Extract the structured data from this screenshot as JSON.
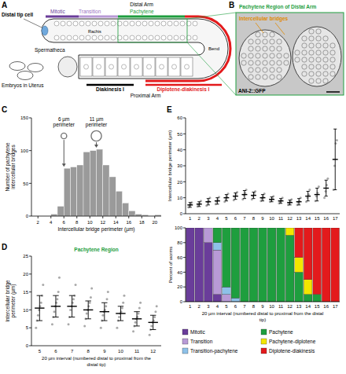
{
  "diagram": {
    "panel_label": "A",
    "labels": {
      "distal_arm": "Distal Arm",
      "mitotic": "Mitotic",
      "transition": "Transition",
      "pachytene": "Pachytene",
      "distal_tip_cell": "Distal tip cell",
      "rachis": "Rachis",
      "bend": "Bend",
      "spermatheca": "Spermatheca",
      "embryos": "Embryos in Uterus",
      "diakinesis": "Diakinesis I",
      "diplotene": "Diplotene-diakinesis I",
      "proximal_arm": "Proximal Arm"
    }
  },
  "image": {
    "panel_label": "B",
    "title": "Pachytene Region of Distal Arm",
    "annotation": "Intercellular bridges",
    "caption": "ANI-2::GFP"
  },
  "chart_data": [
    {
      "panel_label": "C",
      "type": "histogram",
      "x_label": "Intercellular bridge perimeter (µm)",
      "y_label": "Number of pachytene intercellular bridges",
      "bins": [
        4,
        5,
        6,
        7,
        8,
        9,
        10,
        11,
        12,
        13,
        14,
        15,
        16,
        17,
        18,
        19,
        20,
        21
      ],
      "values": [
        3,
        15,
        73,
        75,
        78,
        98,
        100,
        102,
        78,
        60,
        38,
        20,
        8,
        3,
        2,
        0,
        2
      ],
      "color": "#9a9a9a",
      "xlim": [
        1,
        21
      ],
      "xticks": [
        2,
        4,
        6,
        8,
        10,
        12,
        14,
        16,
        18,
        20
      ],
      "ylim": [
        0,
        150
      ],
      "yticks": [
        0,
        50,
        100,
        150
      ],
      "annotations": [
        {
          "text": "6 µm perimeter",
          "x": 6
        },
        {
          "text": "11 µm perimeter",
          "x": 11
        }
      ]
    },
    {
      "panel_label": "D",
      "type": "scatter",
      "title": "Pachytene Region",
      "x_label": "20 µm interval (numbered distal to proximal from the distal tip)",
      "y_label": "Intercellular bridge perimeter (µm)",
      "categories": [
        5,
        6,
        7,
        8,
        9,
        10,
        11,
        12
      ],
      "ylim": [
        0,
        25
      ],
      "yticks": [
        0,
        5,
        10,
        15,
        20,
        25
      ],
      "series": [
        {
          "color": "#8c8c8c",
          "values": [
            10.5,
            11,
            11,
            10,
            9.5,
            9,
            7.5,
            6.5
          ],
          "errors": [
            3.5,
            3,
            3,
            2.5,
            2.5,
            2,
            2,
            2
          ],
          "points": [
            [
              5,
              7,
              8.5,
              10,
              11,
              12,
              14,
              17
            ],
            [
              6,
              8,
              9.5,
              11,
              12,
              13,
              15,
              19
            ],
            [
              6,
              8,
              10,
              11,
              12,
              13,
              14,
              17
            ],
            [
              5.5,
              7.5,
              9,
              10,
              11,
              12,
              13.5,
              16
            ],
            [
              5,
              7,
              8.5,
              9.5,
              10,
              11,
              13,
              15
            ],
            [
              5,
              7,
              8,
              9,
              9.5,
              10.5,
              12,
              14
            ],
            [
              4,
              5.5,
              6.5,
              7.5,
              8,
              9,
              10.5,
              12
            ],
            [
              3,
              4.5,
              5.5,
              6.5,
              7,
              8,
              9.5,
              11
            ]
          ]
        }
      ]
    },
    {
      "panel_label": "E",
      "type": "scatter",
      "y_label": "Intercellular bridge perimeter (µm)",
      "categories": [
        1,
        2,
        3,
        4,
        5,
        6,
        7,
        8,
        9,
        10,
        11,
        12,
        13,
        14,
        15,
        16,
        17
      ],
      "ylim": [
        0,
        60
      ],
      "yticks": [
        0,
        10,
        20,
        30,
        40,
        50,
        60
      ],
      "series": [
        {
          "color": "#8c8c8c",
          "values": [
            5.5,
            6,
            7.5,
            8,
            10,
            11,
            12,
            11.5,
            10,
            9,
            8,
            7,
            7.5,
            11,
            12,
            16,
            34
          ],
          "errors": [
            1.5,
            1.5,
            2,
            2,
            2,
            2,
            2.5,
            2,
            2,
            1.5,
            1.5,
            1.5,
            2,
            3,
            4,
            5,
            19
          ],
          "points": [
            [
              4,
              5,
              6,
              7
            ],
            [
              4.5,
              5.5,
              6.5,
              8
            ],
            [
              5,
              7,
              8,
              10
            ],
            [
              6,
              7.5,
              9,
              10.5
            ],
            [
              7.5,
              9,
              11,
              12.5
            ],
            [
              8.5,
              10.5,
              12,
              13.5
            ],
            [
              9,
              11.5,
              13,
              15
            ],
            [
              9,
              11,
              12.5,
              14
            ],
            [
              8,
              9.5,
              11,
              12.5
            ],
            [
              7.5,
              8.5,
              9.5,
              11
            ],
            [
              6.5,
              7.5,
              8.5,
              10
            ],
            [
              5.5,
              6.5,
              7.5,
              9
            ],
            [
              5.5,
              7,
              8,
              10
            ],
            [
              7.5,
              10,
              12,
              15
            ],
            [
              8,
              11,
              13,
              17
            ],
            [
              10,
              14,
              18,
              22
            ],
            [
              15,
              30,
              44,
              46
            ]
          ]
        }
      ]
    },
    {
      "type": "bar",
      "stacked": true,
      "x_label": "20 µm interval (numbered distal to proximal from the distal tip)",
      "y_label": "Percent of worms",
      "categories": [
        1,
        2,
        3,
        4,
        5,
        6,
        7,
        8,
        9,
        10,
        11,
        12,
        13,
        14,
        15,
        16,
        17
      ],
      "ylim": [
        0,
        100
      ],
      "yticks": [
        0,
        20,
        40,
        60,
        80,
        100
      ],
      "legend": "bottom",
      "series": [
        {
          "name": "Mitotic",
          "color": "#6a3d9a",
          "values": [
            100,
            100,
            80,
            10,
            0,
            0,
            0,
            0,
            0,
            0,
            0,
            0,
            0,
            0,
            0,
            0,
            0
          ]
        },
        {
          "name": "Transition",
          "color": "#b89ad6",
          "values": [
            0,
            0,
            20,
            60,
            10,
            0,
            0,
            0,
            0,
            0,
            0,
            0,
            0,
            0,
            0,
            0,
            0
          ]
        },
        {
          "name": "Transition-pachytene",
          "color": "#8ec1e8",
          "values": [
            0,
            0,
            0,
            10,
            10,
            5,
            0,
            0,
            0,
            0,
            0,
            0,
            0,
            0,
            0,
            0,
            0
          ]
        },
        {
          "name": "Pachytene",
          "color": "#1e9e3e",
          "values": [
            0,
            0,
            0,
            20,
            80,
            95,
            100,
            100,
            100,
            100,
            100,
            90,
            40,
            10,
            10,
            0,
            0
          ]
        },
        {
          "name": "Pachytene-diplotene",
          "color": "#f2e600",
          "values": [
            0,
            0,
            0,
            0,
            0,
            0,
            0,
            0,
            0,
            0,
            0,
            10,
            20,
            20,
            0,
            0,
            0
          ]
        },
        {
          "name": "Diplotene-diakinesis",
          "color": "#e31a1c",
          "values": [
            0,
            0,
            0,
            0,
            0,
            0,
            0,
            0,
            0,
            0,
            0,
            0,
            40,
            70,
            90,
            100,
            100
          ]
        }
      ]
    }
  ]
}
